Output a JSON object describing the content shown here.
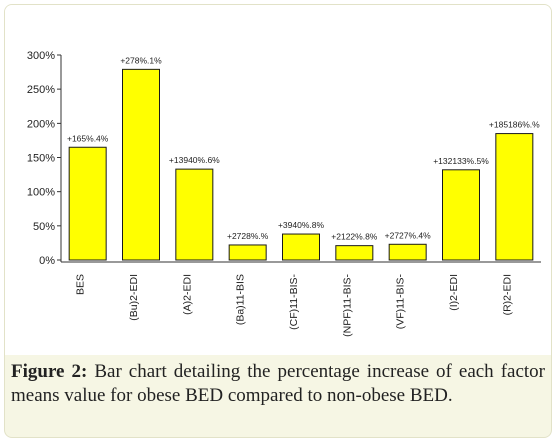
{
  "chart_data": {
    "type": "bar",
    "categories": [
      "BES",
      "(Bu)2-EDI",
      "(A)2-EDI",
      "(Ba)11-BIS",
      "(CF)11-BIS-",
      "(NPF)11-BIS-",
      "(VF)11-BIS-",
      "(I)2-EDI",
      "(R)2-EDI"
    ],
    "values": [
      165,
      279,
      133,
      22,
      38,
      21,
      23,
      132,
      185
    ],
    "data_labels": [
      "+165%.4%",
      "+278%.1%",
      "+13940%.6%",
      "+2728%.%",
      "+3940%.8%",
      "+2122%.8%",
      "+2727%.4%",
      "+132133%.5%",
      "+185186%.%"
    ],
    "yticks": [
      0,
      50,
      100,
      150,
      200,
      250,
      300
    ],
    "ytick_labels": [
      "0%",
      "50%",
      "100%",
      "150%",
      "200%",
      "250%",
      "300%"
    ],
    "ylim": [
      0,
      300
    ],
    "title": "",
    "xlabel": "",
    "ylabel": "",
    "grid": false,
    "legend": "none",
    "bar_color": "#ffff00",
    "bar_edge_color": "#1a1a1a"
  },
  "caption": {
    "label": "Figure 2:",
    "text": " Bar chart detailing the percentage increase of each factor means value for obese BED compared to non-obese BED."
  }
}
